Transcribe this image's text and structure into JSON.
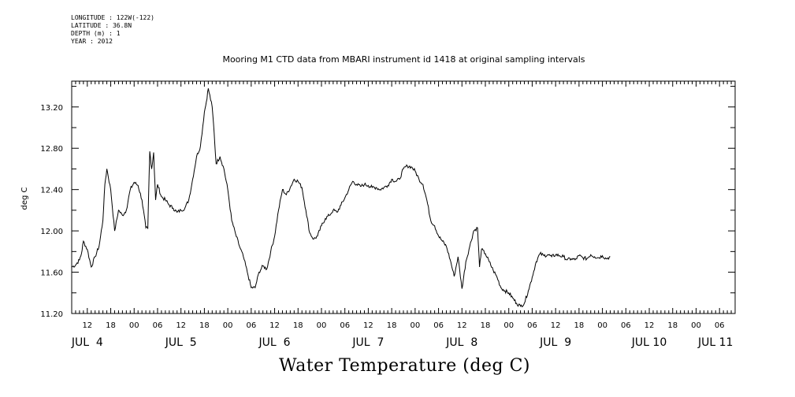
{
  "metadata": {
    "longitude": "LONGITUDE : 122W(-122)",
    "latitude": "LATITUDE : 36.8N",
    "depth": "DEPTH (m) : 1",
    "year": "YEAR : 2012"
  },
  "chart_data": {
    "type": "line",
    "title": "Mooring M1 CTD data from MBARI instrument id 1418 at original sampling intervals",
    "xlabel": "Water Temperature (deg C)",
    "ylabel": "deg C",
    "ylim": [
      11.2,
      13.45
    ],
    "yticks": [
      11.2,
      11.6,
      12.0,
      12.4,
      12.8,
      13.2
    ],
    "ytick_labels": [
      "11.20",
      "11.60",
      "12.00",
      "12.40",
      "12.80",
      "13.20"
    ],
    "x_unit": "hours since JUL 4 00:00 (2012)",
    "xlim": [
      8,
      178
    ],
    "hour_ticks": [
      {
        "x": 12,
        "label": "12"
      },
      {
        "x": 18,
        "label": "18"
      },
      {
        "x": 24,
        "label": "00"
      },
      {
        "x": 30,
        "label": "06"
      },
      {
        "x": 36,
        "label": "12"
      },
      {
        "x": 42,
        "label": "18"
      },
      {
        "x": 48,
        "label": "00"
      },
      {
        "x": 54,
        "label": "06"
      },
      {
        "x": 60,
        "label": "12"
      },
      {
        "x": 66,
        "label": "18"
      },
      {
        "x": 72,
        "label": "00"
      },
      {
        "x": 78,
        "label": "06"
      },
      {
        "x": 84,
        "label": "12"
      },
      {
        "x": 90,
        "label": "18"
      },
      {
        "x": 96,
        "label": "00"
      },
      {
        "x": 102,
        "label": "06"
      },
      {
        "x": 108,
        "label": "12"
      },
      {
        "x": 114,
        "label": "18"
      },
      {
        "x": 120,
        "label": "00"
      },
      {
        "x": 126,
        "label": "06"
      },
      {
        "x": 132,
        "label": "12"
      },
      {
        "x": 138,
        "label": "18"
      },
      {
        "x": 144,
        "label": "00"
      },
      {
        "x": 150,
        "label": "06"
      },
      {
        "x": 156,
        "label": "12"
      },
      {
        "x": 162,
        "label": "18"
      },
      {
        "x": 168,
        "label": "00"
      },
      {
        "x": 174,
        "label": "06"
      }
    ],
    "day_labels": [
      {
        "x": 12,
        "label": "JUL  4"
      },
      {
        "x": 36,
        "label": "JUL  5"
      },
      {
        "x": 60,
        "label": "JUL  6"
      },
      {
        "x": 84,
        "label": "JUL  7"
      },
      {
        "x": 108,
        "label": "JUL  8"
      },
      {
        "x": 132,
        "label": "JUL  9"
      },
      {
        "x": 156,
        "label": "JUL 10"
      },
      {
        "x": 173,
        "label": "JUL 11"
      }
    ],
    "series": [
      {
        "color": "#000000",
        "points": [
          [
            8,
            11.65
          ],
          [
            9,
            11.67
          ],
          [
            10,
            11.72
          ],
          [
            10.5,
            11.78
          ],
          [
            11,
            11.9
          ],
          [
            12,
            11.82
          ],
          [
            13,
            11.65
          ],
          [
            14,
            11.75
          ],
          [
            15,
            11.85
          ],
          [
            16,
            12.1
          ],
          [
            16.5,
            12.45
          ],
          [
            17,
            12.6
          ],
          [
            18,
            12.4
          ],
          [
            19,
            12.0
          ],
          [
            20,
            12.2
          ],
          [
            21,
            12.15
          ],
          [
            22,
            12.2
          ],
          [
            23,
            12.4
          ],
          [
            24,
            12.47
          ],
          [
            25,
            12.44
          ],
          [
            26,
            12.3
          ],
          [
            27,
            12.03
          ],
          [
            27.5,
            12.02
          ],
          [
            28,
            12.77
          ],
          [
            28.5,
            12.6
          ],
          [
            29,
            12.76
          ],
          [
            29.5,
            12.3
          ],
          [
            30,
            12.45
          ],
          [
            31,
            12.33
          ],
          [
            32,
            12.3
          ],
          [
            33,
            12.25
          ],
          [
            34,
            12.22
          ],
          [
            35,
            12.18
          ],
          [
            36,
            12.2
          ],
          [
            37,
            12.22
          ],
          [
            38,
            12.3
          ],
          [
            39,
            12.5
          ],
          [
            40,
            12.72
          ],
          [
            41,
            12.82
          ],
          [
            42,
            13.15
          ],
          [
            42.5,
            13.25
          ],
          [
            43,
            13.38
          ],
          [
            44,
            13.2
          ],
          [
            44.5,
            12.95
          ],
          [
            45,
            12.65
          ],
          [
            46,
            12.72
          ],
          [
            47,
            12.6
          ],
          [
            48,
            12.4
          ],
          [
            49,
            12.1
          ],
          [
            50,
            11.97
          ],
          [
            51,
            11.85
          ],
          [
            52,
            11.75
          ],
          [
            53,
            11.6
          ],
          [
            54,
            11.45
          ],
          [
            55,
            11.45
          ],
          [
            56,
            11.6
          ],
          [
            57,
            11.66
          ],
          [
            58,
            11.63
          ],
          [
            59,
            11.8
          ],
          [
            60,
            11.95
          ],
          [
            61,
            12.2
          ],
          [
            62,
            12.4
          ],
          [
            63,
            12.35
          ],
          [
            64,
            12.42
          ],
          [
            65,
            12.5
          ],
          [
            66,
            12.48
          ],
          [
            67,
            12.42
          ],
          [
            68,
            12.2
          ],
          [
            69,
            11.98
          ],
          [
            70,
            11.92
          ],
          [
            71,
            11.95
          ],
          [
            72,
            12.05
          ],
          [
            73,
            12.12
          ],
          [
            74,
            12.15
          ],
          [
            75,
            12.2
          ],
          [
            76,
            12.18
          ],
          [
            77,
            12.25
          ],
          [
            78,
            12.32
          ],
          [
            79,
            12.4
          ],
          [
            80,
            12.48
          ],
          [
            81,
            12.45
          ],
          [
            82,
            12.43
          ],
          [
            83,
            12.45
          ],
          [
            84,
            12.44
          ],
          [
            85,
            12.42
          ],
          [
            86,
            12.42
          ],
          [
            87,
            12.4
          ],
          [
            88,
            12.42
          ],
          [
            89,
            12.44
          ],
          [
            90,
            12.5
          ],
          [
            91,
            12.48
          ],
          [
            92,
            12.5
          ],
          [
            93,
            12.6
          ],
          [
            94,
            12.63
          ],
          [
            95,
            12.62
          ],
          [
            96,
            12.58
          ],
          [
            97,
            12.5
          ],
          [
            98,
            12.45
          ],
          [
            99,
            12.3
          ],
          [
            100,
            12.1
          ],
          [
            101,
            12.05
          ],
          [
            102,
            11.95
          ],
          [
            103,
            11.9
          ],
          [
            104,
            11.85
          ],
          [
            105,
            11.72
          ],
          [
            106,
            11.56
          ],
          [
            107,
            11.75
          ],
          [
            108,
            11.44
          ],
          [
            109,
            11.7
          ],
          [
            110,
            11.85
          ],
          [
            111,
            12.0
          ],
          [
            112,
            12.03
          ],
          [
            112.5,
            11.65
          ],
          [
            113,
            11.82
          ],
          [
            114,
            11.78
          ],
          [
            115,
            11.7
          ],
          [
            116,
            11.62
          ],
          [
            117,
            11.55
          ],
          [
            118,
            11.45
          ],
          [
            119,
            11.42
          ],
          [
            120,
            11.4
          ],
          [
            121,
            11.35
          ],
          [
            122,
            11.3
          ],
          [
            123,
            11.27
          ],
          [
            124,
            11.3
          ],
          [
            125,
            11.42
          ],
          [
            126,
            11.55
          ],
          [
            127,
            11.7
          ],
          [
            128,
            11.78
          ],
          [
            129,
            11.76
          ],
          [
            130,
            11.77
          ],
          [
            131,
            11.75
          ],
          [
            132,
            11.77
          ],
          [
            133,
            11.76
          ],
          [
            134,
            11.75
          ],
          [
            135,
            11.72
          ],
          [
            136,
            11.73
          ],
          [
            137,
            11.72
          ],
          [
            138,
            11.76
          ],
          [
            139,
            11.74
          ],
          [
            140,
            11.73
          ],
          [
            141,
            11.77
          ],
          [
            142,
            11.75
          ],
          [
            143,
            11.74
          ],
          [
            144,
            11.76
          ],
          [
            145,
            11.73
          ],
          [
            146,
            11.75
          ]
        ]
      }
    ],
    "grid": false
  }
}
